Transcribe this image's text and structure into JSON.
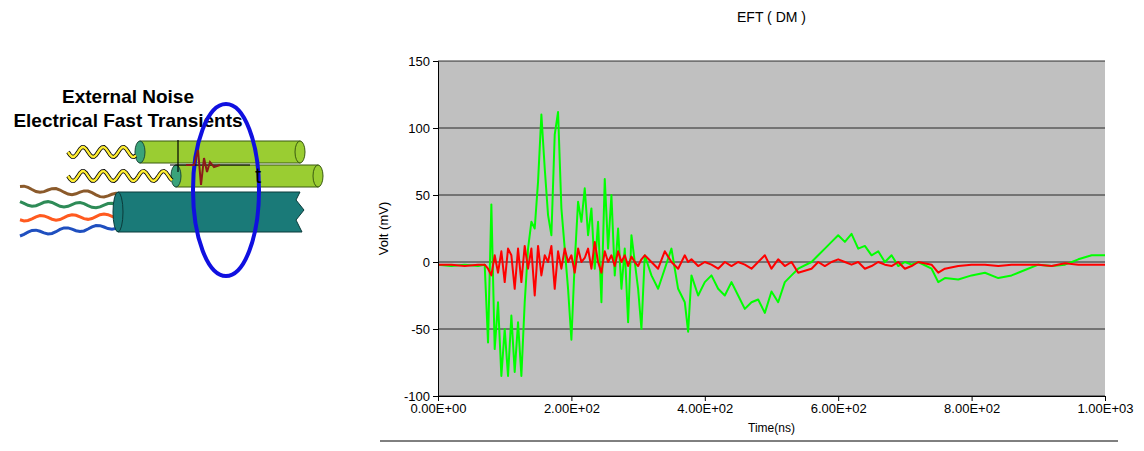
{
  "chart_data": {
    "type": "line",
    "title": "EFT ( DM )",
    "x_label": "Time(ns)",
    "y_label": "Volt (mV)",
    "annotations": [
      "External Noise",
      "Electrical Fast Transients",
      "t"
    ],
    "x": [
      0,
      20,
      40,
      60,
      70,
      75,
      80,
      85,
      90,
      95,
      100,
      105,
      110,
      115,
      120,
      125,
      130,
      135,
      140,
      145,
      150,
      155,
      160,
      165,
      170,
      175,
      180,
      185,
      190,
      195,
      200,
      205,
      210,
      215,
      220,
      225,
      230,
      235,
      240,
      245,
      250,
      255,
      260,
      265,
      270,
      275,
      280,
      285,
      290,
      295,
      300,
      305,
      310,
      320,
      330,
      340,
      350,
      360,
      370,
      375,
      380,
      390,
      400,
      410,
      420,
      430,
      440,
      450,
      460,
      470,
      480,
      490,
      500,
      510,
      520,
      530,
      540,
      560,
      570,
      580,
      590,
      600,
      610,
      620,
      630,
      640,
      650,
      660,
      670,
      680,
      690,
      700,
      710,
      720,
      740,
      750,
      760,
      780,
      800,
      820,
      840,
      860,
      880,
      900,
      920,
      940,
      960,
      980,
      1000
    ],
    "series": [
      {
        "color": "#00ff00",
        "values": [
          -2,
          -3,
          -2,
          -3,
          -2,
          -60,
          43,
          -65,
          -30,
          -85,
          -50,
          -85,
          -40,
          -82,
          -45,
          -85,
          -30,
          10,
          30,
          25,
          60,
          110,
          70,
          35,
          20,
          95,
          112,
          40,
          10,
          -20,
          -58,
          0,
          45,
          30,
          55,
          20,
          40,
          -5,
          30,
          -30,
          62,
          10,
          50,
          -10,
          25,
          -20,
          10,
          -45,
          20,
          0,
          -20,
          -50,
          5,
          -10,
          -20,
          -5,
          10,
          -20,
          -30,
          -52,
          -10,
          -25,
          -15,
          -10,
          -20,
          -25,
          -15,
          -25,
          -35,
          -30,
          -28,
          -38,
          -22,
          -30,
          -15,
          -10,
          -5,
          0,
          5,
          10,
          15,
          20,
          15,
          21,
          10,
          12,
          5,
          8,
          0,
          5,
          -3,
          0,
          -2,
          0,
          -5,
          -15,
          -12,
          -13,
          -10,
          -8,
          -12,
          -10,
          -6,
          -2,
          -3,
          -2,
          2,
          5,
          5
        ]
      },
      {
        "color": "#ff0000",
        "values": [
          -2,
          -2,
          -3,
          -2,
          -2,
          -5,
          -10,
          5,
          -8,
          8,
          -15,
          10,
          5,
          -20,
          10,
          -15,
          12,
          -5,
          10,
          -25,
          12,
          -10,
          5,
          0,
          12,
          -20,
          8,
          -5,
          10,
          0,
          5,
          -8,
          10,
          0,
          3,
          10,
          -5,
          15,
          0,
          -8,
          8,
          0,
          5,
          -3,
          8,
          0,
          5,
          -3,
          4,
          0,
          -3,
          2,
          5,
          0,
          -5,
          8,
          0,
          -5,
          5,
          0,
          2,
          -3,
          0,
          -2,
          -5,
          0,
          -3,
          0,
          -2,
          -5,
          0,
          5,
          -5,
          2,
          -3,
          0,
          -8,
          -5,
          0,
          -3,
          0,
          2,
          0,
          -2,
          0,
          -5,
          -3,
          0,
          -2,
          -3,
          0,
          -5,
          -3,
          0,
          -2,
          -8,
          -5,
          -3,
          -2,
          -2,
          -3,
          -2,
          -2,
          -2,
          -3,
          -1,
          -2,
          -2,
          -2
        ]
      }
    ],
    "xlim": [
      0,
      1000
    ],
    "xticks": [
      {
        "value": 0,
        "label": "0.00E+00"
      },
      {
        "value": 200,
        "label": "2.00E+02"
      },
      {
        "value": 400,
        "label": "4.00E+02"
      },
      {
        "value": 600,
        "label": "6.00E+02"
      },
      {
        "value": 800,
        "label": "8.00E+02"
      },
      {
        "value": 1000,
        "label": "1.00E+03"
      }
    ],
    "ylim": [
      -100,
      150
    ],
    "yticks": [
      -100,
      -50,
      0,
      50,
      100,
      150
    ],
    "grid": true
  }
}
